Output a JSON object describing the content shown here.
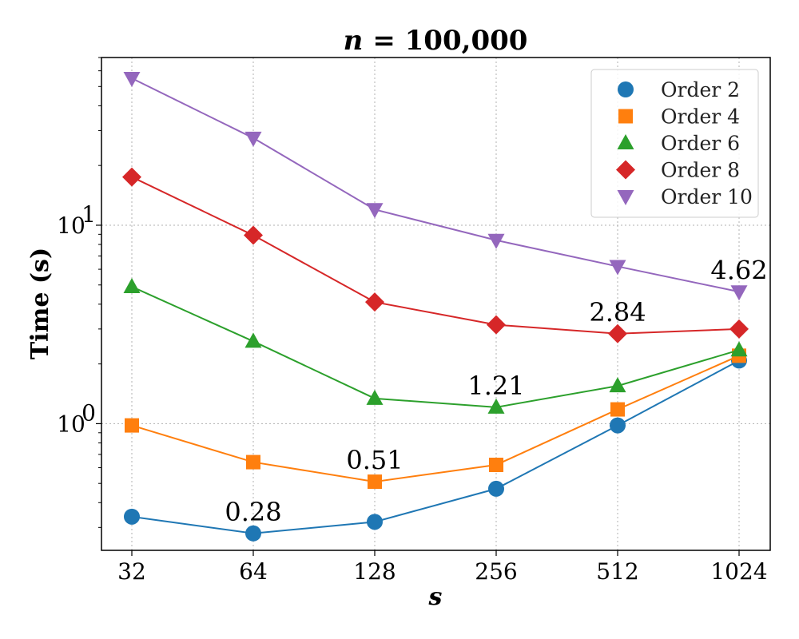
{
  "chart_data": {
    "type": "line",
    "title": "n = 100,000",
    "title_var": "n",
    "title_value": "= 100,000",
    "xlabel": "s",
    "ylabel": "Time (s)",
    "xscale": "log2",
    "yscale": "log10",
    "ylim": [
      0.23,
      70
    ],
    "x": [
      32,
      64,
      128,
      256,
      512,
      1024
    ],
    "x_tick_labels": [
      "32",
      "64",
      "128",
      "256",
      "512",
      "1024"
    ],
    "y_ticks": [
      {
        "value": 1,
        "base": "10",
        "exp": "0"
      },
      {
        "value": 10,
        "base": "10",
        "exp": "1"
      }
    ],
    "grid": true,
    "legend_position": "top-right",
    "series": [
      {
        "name": "Order 2",
        "color": "#1f77b4",
        "marker": "circle",
        "values": [
          0.34,
          0.28,
          0.32,
          0.47,
          0.98,
          2.08
        ]
      },
      {
        "name": "Order 4",
        "color": "#ff7f0e",
        "marker": "square",
        "values": [
          0.98,
          0.64,
          0.51,
          0.62,
          1.18,
          2.2
        ]
      },
      {
        "name": "Order 6",
        "color": "#2ca02c",
        "marker": "triangle-up",
        "values": [
          4.9,
          2.6,
          1.34,
          1.21,
          1.55,
          2.35
        ]
      },
      {
        "name": "Order 8",
        "color": "#d62728",
        "marker": "diamond",
        "values": [
          17.5,
          8.9,
          4.1,
          3.15,
          2.84,
          3.0
        ]
      },
      {
        "name": "Order 10",
        "color": "#9467bd",
        "marker": "triangle-down",
        "values": [
          55,
          27.5,
          12,
          8.4,
          6.2,
          4.62
        ]
      }
    ],
    "annotations": [
      {
        "text": "0.28",
        "series": 0,
        "point": 1
      },
      {
        "text": "0.51",
        "series": 1,
        "point": 2
      },
      {
        "text": "1.21",
        "series": 2,
        "point": 3
      },
      {
        "text": "2.84",
        "series": 3,
        "point": 4
      },
      {
        "text": "4.62",
        "series": 4,
        "point": 5
      }
    ]
  }
}
